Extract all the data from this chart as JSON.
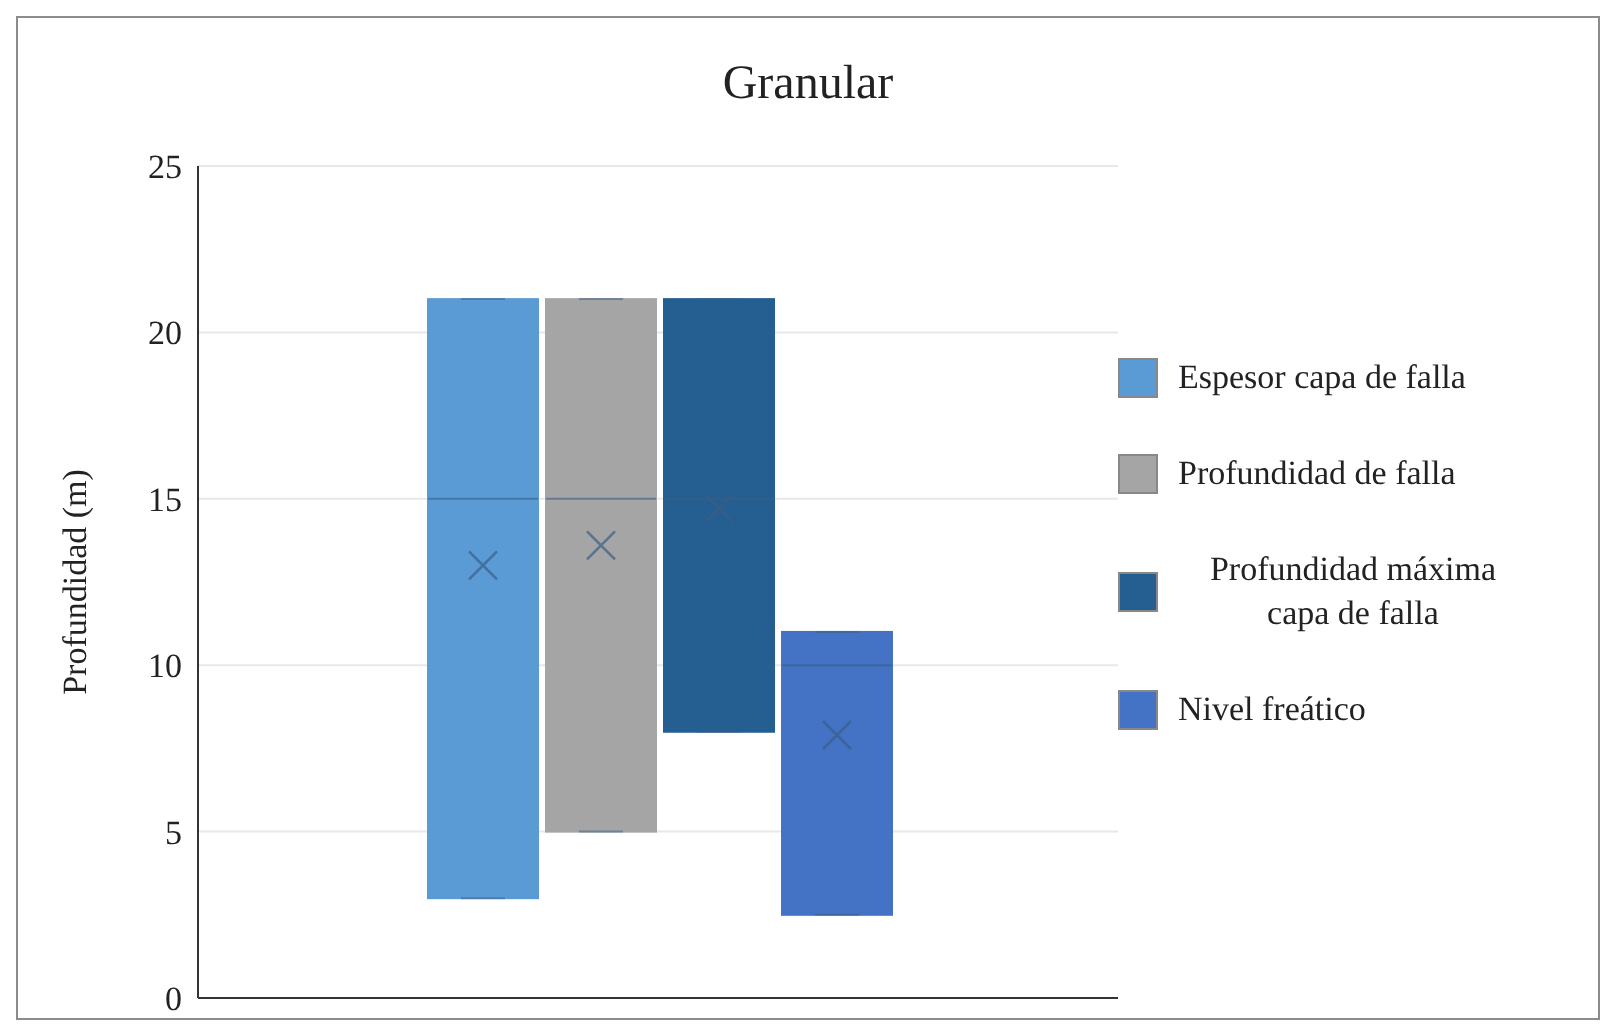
{
  "chart_data": {
    "type": "box",
    "title": "Granular",
    "ylabel": "Profundidad (m)",
    "categories": [
      null
    ],
    "ylim": [
      0,
      25
    ],
    "yticks": [
      0,
      5,
      10,
      15,
      20,
      25
    ],
    "grid": "y",
    "legend": "right",
    "marker": "cross",
    "series": [
      {
        "name": "Espesor capa de falla",
        "color": "#5b9bd5",
        "boxes": [
          {
            "low": 3,
            "q1": 3,
            "median": 15,
            "q3": 21,
            "high": 21,
            "mean": 13
          }
        ]
      },
      {
        "name": "Profundidad de falla",
        "color": "#a5a5a5",
        "boxes": [
          {
            "low": 5,
            "q1": 5,
            "median": 15,
            "q3": 21,
            "high": 21,
            "mean": 13.6
          }
        ]
      },
      {
        "name": "Profundidad máxima capa de falla",
        "color": "#255e91",
        "boxes": [
          {
            "low": 8,
            "q1": 8,
            "median": 15,
            "q3": 21,
            "high": 21,
            "mean": 14.7
          }
        ]
      },
      {
        "name": "Nivel freático",
        "color": "#4472c4",
        "boxes": [
          {
            "low": 2.5,
            "q1": 2.5,
            "median": 10,
            "q3": 11,
            "high": 11,
            "mean": 7.9
          }
        ]
      }
    ]
  }
}
